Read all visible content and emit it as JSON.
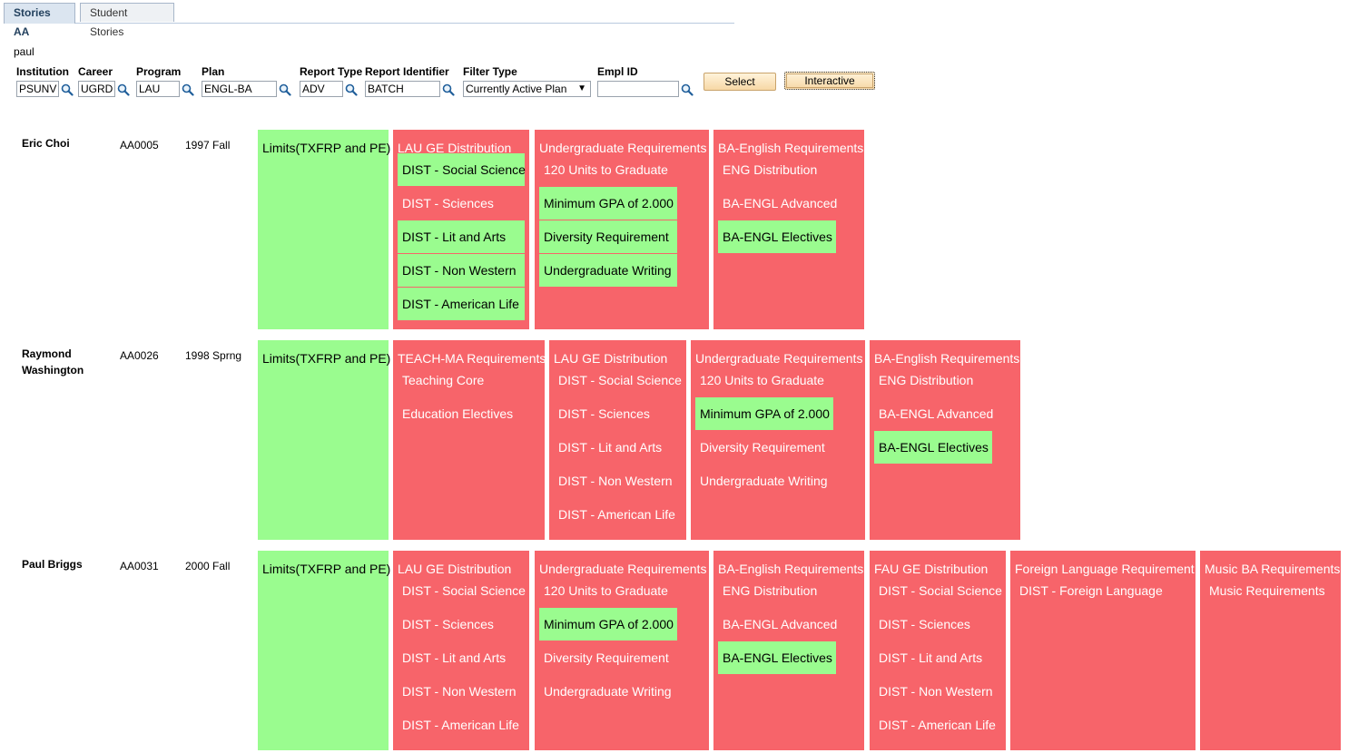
{
  "tabs": [
    "Stories AA",
    "Student Stories"
  ],
  "user": "paul",
  "filters": {
    "institution": {
      "label": "Institution",
      "value": "PSUNV"
    },
    "career": {
      "label": "Career",
      "value": "UGRD"
    },
    "program": {
      "label": "Program",
      "value": "LAU"
    },
    "plan": {
      "label": "Plan",
      "value": "ENGL-BA"
    },
    "report_type": {
      "label": "Report Type",
      "value": "ADV"
    },
    "report_identifier": {
      "label": "Report Identifier",
      "value": "BATCH"
    },
    "filter_type": {
      "label": "Filter Type",
      "value": "Currently Active Plan"
    },
    "empl_id": {
      "label": "Empl ID",
      "value": ""
    }
  },
  "buttons": {
    "select": "Select",
    "interactive": "Interactive"
  },
  "colors": {
    "satisfied": "#9afc8f",
    "not_satisfied": "#f7646a"
  },
  "students": [
    {
      "name": "Eric Choi",
      "id": "AA0005",
      "term": "1997 Fall",
      "requirements": [
        {
          "title": "Limits(TXFRP and PE)",
          "status": "green",
          "items": []
        },
        {
          "title": "LAU GE Distribution",
          "status": "red",
          "items": [
            {
              "label": "DIST - Social Science",
              "status": "green"
            },
            {
              "label": "DIST - Sciences",
              "status": "red"
            },
            {
              "label": "DIST - Lit and Arts",
              "status": "green"
            },
            {
              "label": "DIST - Non Western",
              "status": "green"
            },
            {
              "label": "DIST - American Life",
              "status": "green"
            }
          ]
        },
        {
          "title": "Undergraduate Requirements",
          "status": "red",
          "items": [
            {
              "label": "120 Units to Graduate",
              "status": "red"
            },
            {
              "label": "Minimum GPA of 2.000",
              "status": "green"
            },
            {
              "label": "Diversity Requirement",
              "status": "green"
            },
            {
              "label": "Undergraduate Writing",
              "status": "green"
            }
          ]
        },
        {
          "title": "BA-English Requirements",
          "status": "red",
          "items": [
            {
              "label": "ENG Distribution",
              "status": "red"
            },
            {
              "label": "BA-ENGL Advanced",
              "status": "red"
            },
            {
              "label": "BA-ENGL Electives",
              "status": "green"
            }
          ]
        }
      ]
    },
    {
      "name": "Raymond Washington",
      "id": "AA0026",
      "term": "1998 Sprng",
      "requirements": [
        {
          "title": "Limits(TXFRP and PE)",
          "status": "green",
          "items": []
        },
        {
          "title": "TEACH-MA Requirements",
          "status": "red",
          "items": [
            {
              "label": "Teaching Core",
              "status": "red"
            },
            {
              "label": "Education Electives",
              "status": "red"
            }
          ]
        },
        {
          "title": "LAU GE Distribution",
          "status": "red",
          "items": [
            {
              "label": "DIST - Social Science",
              "status": "red"
            },
            {
              "label": "DIST - Sciences",
              "status": "red"
            },
            {
              "label": "DIST - Lit and Arts",
              "status": "red"
            },
            {
              "label": "DIST - Non Western",
              "status": "red"
            },
            {
              "label": "DIST - American Life",
              "status": "red"
            }
          ]
        },
        {
          "title": "Undergraduate Requirements",
          "status": "red",
          "items": [
            {
              "label": "120 Units to Graduate",
              "status": "red"
            },
            {
              "label": "Minimum GPA of 2.000",
              "status": "green"
            },
            {
              "label": "Diversity Requirement",
              "status": "red"
            },
            {
              "label": "Undergraduate Writing",
              "status": "red"
            }
          ]
        },
        {
          "title": "BA-English Requirements",
          "status": "red",
          "items": [
            {
              "label": "ENG Distribution",
              "status": "red"
            },
            {
              "label": "BA-ENGL Advanced",
              "status": "red"
            },
            {
              "label": "BA-ENGL Electives",
              "status": "green"
            }
          ]
        }
      ]
    },
    {
      "name": "Paul Briggs",
      "id": "AA0031",
      "term": "2000 Fall",
      "requirements": [
        {
          "title": "Limits(TXFRP and PE)",
          "status": "green",
          "items": []
        },
        {
          "title": "LAU GE Distribution",
          "status": "red",
          "items": [
            {
              "label": "DIST - Social Science",
              "status": "red"
            },
            {
              "label": "DIST - Sciences",
              "status": "red"
            },
            {
              "label": "DIST - Lit and Arts",
              "status": "red"
            },
            {
              "label": "DIST - Non Western",
              "status": "red"
            },
            {
              "label": "DIST - American Life",
              "status": "red"
            }
          ]
        },
        {
          "title": "Undergraduate Requirements",
          "status": "red",
          "items": [
            {
              "label": "120 Units to Graduate",
              "status": "red"
            },
            {
              "label": "Minimum GPA of 2.000",
              "status": "green"
            },
            {
              "label": "Diversity Requirement",
              "status": "red"
            },
            {
              "label": "Undergraduate Writing",
              "status": "red"
            }
          ]
        },
        {
          "title": "BA-English Requirements",
          "status": "red",
          "items": [
            {
              "label": "ENG Distribution",
              "status": "red"
            },
            {
              "label": "BA-ENGL Advanced",
              "status": "red"
            },
            {
              "label": "BA-ENGL Electives",
              "status": "green"
            }
          ]
        },
        {
          "title": "FAU GE Distribution",
          "status": "red",
          "items": [
            {
              "label": "DIST - Social Science",
              "status": "red"
            },
            {
              "label": "DIST - Sciences",
              "status": "red"
            },
            {
              "label": "DIST - Lit and Arts",
              "status": "red"
            },
            {
              "label": "DIST - Non Western",
              "status": "red"
            },
            {
              "label": "DIST - American Life",
              "status": "red"
            }
          ]
        },
        {
          "title": "Foreign Language Requirement",
          "status": "red",
          "items": [
            {
              "label": "DIST - Foreign Language",
              "status": "red"
            }
          ]
        },
        {
          "title": "Music BA Requirements",
          "status": "red",
          "items": [
            {
              "label": "Music Requirements",
              "status": "red"
            }
          ]
        }
      ]
    }
  ]
}
